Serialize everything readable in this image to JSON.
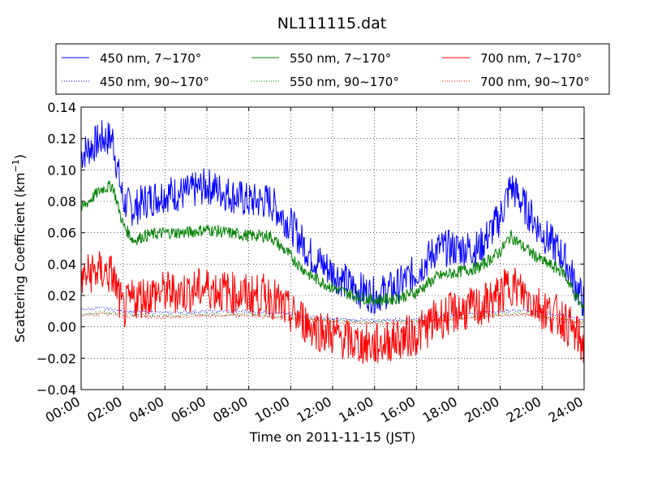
{
  "chart_data": {
    "type": "line",
    "title": "NL111115.dat",
    "xlabel": "Time on 2011-11-15 (JST)",
    "ylabel": "Scattering Coefficient (km",
    "ylabel_sup": "−1",
    "ylabel_end": ")",
    "xlim": [
      0,
      24
    ],
    "ylim": [
      -0.04,
      0.14
    ],
    "grid": true,
    "legend_position": "top (above plot), 3 columns",
    "xtick_labels": [
      "00:00",
      "02:00",
      "04:00",
      "06:00",
      "08:00",
      "10:00",
      "12:00",
      "14:00",
      "16:00",
      "18:00",
      "20:00",
      "22:00",
      "24:00"
    ],
    "xtick_values": [
      0,
      2,
      4,
      6,
      8,
      10,
      12,
      14,
      16,
      18,
      20,
      22,
      24
    ],
    "ytick_labels": [
      "−0.04",
      "−0.02",
      "0.00",
      "0.02",
      "0.04",
      "0.06",
      "0.08",
      "0.10",
      "0.12",
      "0.14"
    ],
    "ytick_values": [
      -0.04,
      -0.02,
      0.0,
      0.02,
      0.04,
      0.06,
      0.08,
      0.1,
      0.12,
      0.14
    ],
    "series": [
      {
        "name": "450 nm, 7∼170°",
        "color": "#0000ff",
        "style": "solid",
        "x": [
          0,
          0.5,
          1,
          1.5,
          2,
          2.5,
          3,
          4,
          5,
          6,
          7,
          8,
          9,
          10,
          10.5,
          11,
          12,
          13,
          14,
          15,
          16,
          17,
          18,
          19,
          20,
          20.5,
          21,
          22,
          23,
          24
        ],
        "y": [
          0.11,
          0.115,
          0.12,
          0.12,
          0.08,
          0.075,
          0.08,
          0.085,
          0.085,
          0.09,
          0.085,
          0.08,
          0.08,
          0.065,
          0.055,
          0.045,
          0.035,
          0.025,
          0.02,
          0.025,
          0.035,
          0.05,
          0.05,
          0.05,
          0.07,
          0.09,
          0.08,
          0.06,
          0.045,
          0.015
        ]
      },
      {
        "name": "450 nm, 90∼170°",
        "color": "#0000ff",
        "style": "dotted",
        "x": [
          0,
          1,
          2,
          4,
          6,
          8,
          10,
          12,
          14,
          16,
          18,
          20,
          21,
          22,
          24
        ],
        "y": [
          0.011,
          0.012,
          0.01,
          0.009,
          0.01,
          0.01,
          0.008,
          0.005,
          0.004,
          0.005,
          0.008,
          0.01,
          0.011,
          0.009,
          0.005
        ]
      },
      {
        "name": "550 nm, 7∼170°",
        "color": "#008000",
        "style": "solid",
        "x": [
          0,
          0.5,
          1,
          1.5,
          2,
          2.5,
          3,
          4,
          5,
          6,
          7,
          8,
          9,
          10,
          10.5,
          11,
          12,
          13,
          14,
          15,
          16,
          17,
          18,
          19,
          20,
          20.5,
          21,
          22,
          23,
          24
        ],
        "y": [
          0.075,
          0.082,
          0.088,
          0.09,
          0.065,
          0.055,
          0.058,
          0.06,
          0.06,
          0.062,
          0.06,
          0.058,
          0.058,
          0.045,
          0.038,
          0.032,
          0.025,
          0.02,
          0.017,
          0.018,
          0.022,
          0.032,
          0.035,
          0.038,
          0.048,
          0.058,
          0.052,
          0.042,
          0.035,
          0.01
        ]
      },
      {
        "name": "550 nm, 90∼170°",
        "color": "#008000",
        "style": "dotted",
        "x": [
          0,
          1,
          2,
          4,
          6,
          8,
          10,
          12,
          14,
          16,
          18,
          20,
          21,
          22,
          24
        ],
        "y": [
          0.008,
          0.009,
          0.008,
          0.007,
          0.008,
          0.008,
          0.006,
          0.004,
          0.003,
          0.004,
          0.006,
          0.008,
          0.009,
          0.007,
          0.003
        ]
      },
      {
        "name": "700 nm, 7∼170°",
        "color": "#ff0000",
        "style": "solid",
        "x": [
          0,
          0.5,
          1,
          1.5,
          2,
          2.5,
          3,
          4,
          5,
          6,
          7,
          8,
          9,
          10,
          10.5,
          11,
          12,
          13,
          14,
          15,
          16,
          17,
          18,
          19,
          20,
          20.5,
          21,
          22,
          23,
          24
        ],
        "y": [
          0.03,
          0.035,
          0.035,
          0.033,
          0.01,
          0.018,
          0.02,
          0.022,
          0.022,
          0.025,
          0.022,
          0.02,
          0.02,
          0.008,
          0.005,
          0.0,
          -0.005,
          -0.01,
          -0.012,
          -0.008,
          -0.005,
          0.005,
          0.01,
          0.012,
          0.02,
          0.028,
          0.022,
          0.012,
          0.005,
          -0.012
        ]
      },
      {
        "name": "700 nm, 90∼170°",
        "color": "#ff0000",
        "style": "dotted",
        "x": [
          0,
          1,
          2,
          4,
          6,
          8,
          10,
          12,
          14,
          16,
          18,
          20,
          21,
          22,
          24
        ],
        "y": [
          0.007,
          0.008,
          0.007,
          0.006,
          0.007,
          0.007,
          0.005,
          0.003,
          0.002,
          0.003,
          0.005,
          0.007,
          0.008,
          0.006,
          0.002
        ]
      }
    ]
  }
}
